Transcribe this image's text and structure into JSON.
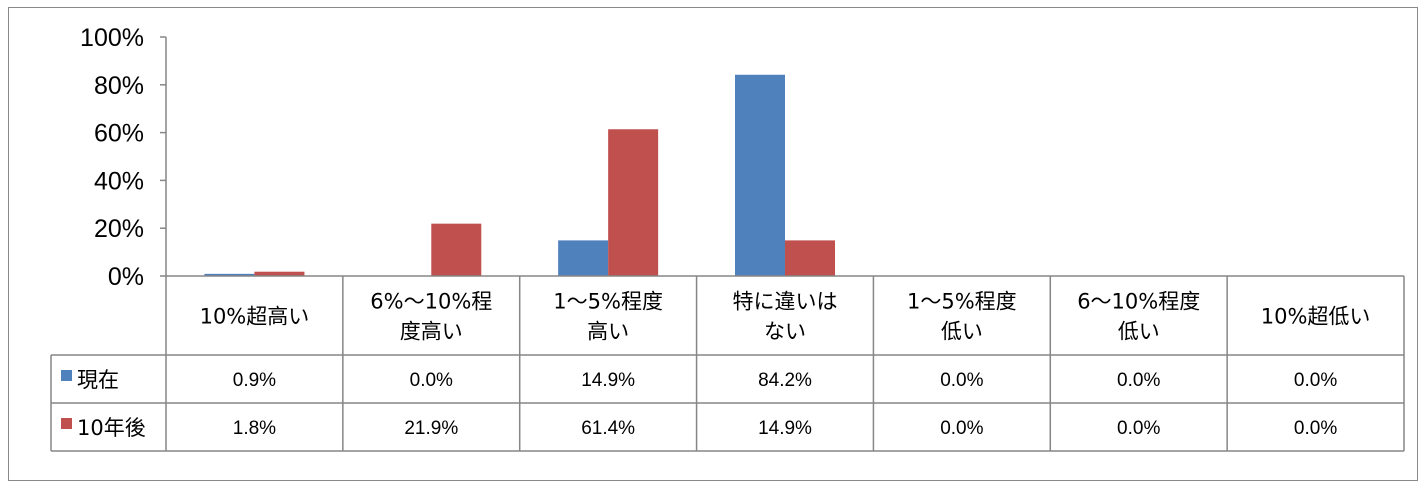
{
  "chart_data": {
    "type": "bar",
    "categories": [
      [
        "10%超高い"
      ],
      [
        "6%～10%程",
        "度高い"
      ],
      [
        "1～5%程度",
        "高い"
      ],
      [
        "特に違いは",
        "ない"
      ],
      [
        "1～5%程度",
        "低い"
      ],
      [
        "6～10%程度",
        "低い"
      ],
      [
        "10%超低い"
      ]
    ],
    "series": [
      {
        "name": "現在",
        "color": "#4f81bd",
        "values": [
          0.9,
          0.0,
          14.9,
          84.2,
          0.0,
          0.0,
          0.0
        ],
        "labels": [
          "0.9%",
          "0.0%",
          "14.9%",
          "84.2%",
          "0.0%",
          "0.0%",
          "0.0%"
        ]
      },
      {
        "name": "10年後",
        "color": "#c0504d",
        "values": [
          1.8,
          21.9,
          61.4,
          14.9,
          0.0,
          0.0,
          0.0
        ],
        "labels": [
          "1.8%",
          "21.9%",
          "61.4%",
          "14.9%",
          "0.0%",
          "0.0%",
          "0.0%"
        ]
      }
    ],
    "ylim": [
      0,
      100
    ],
    "yticks": [
      "0%",
      "20%",
      "40%",
      "60%",
      "80%",
      "100%"
    ],
    "legend": "data-table",
    "grid": false
  }
}
